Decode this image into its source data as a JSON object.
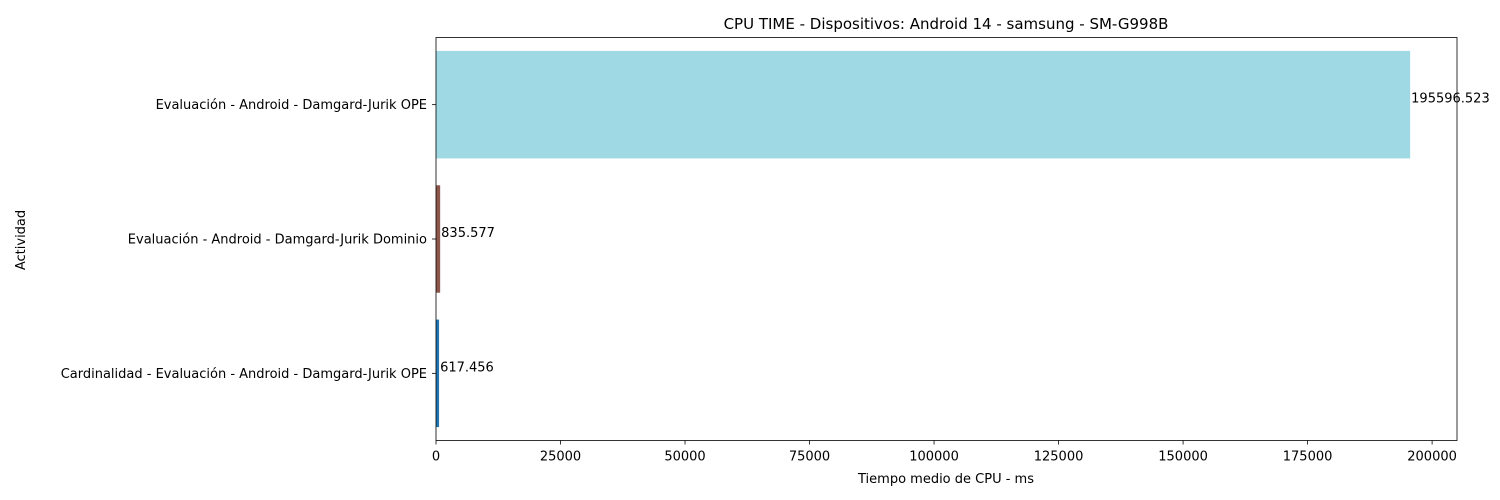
{
  "chart_data": {
    "type": "bar",
    "orientation": "horizontal",
    "title": "CPU TIME - Dispositivos: Android 14 - samsung - SM-G998B",
    "xlabel": "Tiempo medio de CPU - ms",
    "ylabel": "Actividad",
    "xlim": [
      0,
      205000
    ],
    "xticks": [
      0,
      25000,
      50000,
      75000,
      100000,
      125000,
      150000,
      175000,
      200000
    ],
    "xtick_labels": [
      "0",
      "25000",
      "50000",
      "75000",
      "100000",
      "125000",
      "150000",
      "175000",
      "200000"
    ],
    "grid": false,
    "categories": [
      "Evaluación - Android - Damgard-Jurik OPE",
      "Evaluación - Android - Damgard-Jurik Dominio",
      "Cardinalidad - Evaluación - Android - Damgard-Jurik OPE"
    ],
    "values": [
      195596.523,
      835.577,
      617.456
    ],
    "value_labels": [
      "195596.523",
      "835.577",
      "617.456"
    ],
    "colors": [
      "#9fd9e4",
      "#8c564b",
      "#1f77b4"
    ]
  }
}
